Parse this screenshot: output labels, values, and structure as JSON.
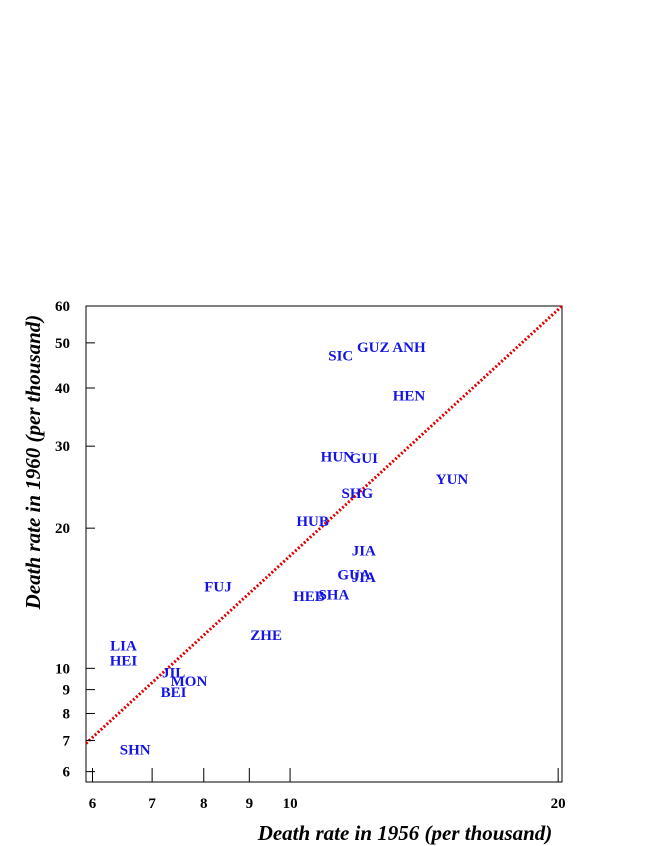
{
  "chart_data": {
    "type": "scatter",
    "xlabel": "Death rate in 1956 (per thousand)",
    "ylabel": "Death rate in 1960 (per thousand)",
    "x_scale": "log",
    "y_scale": "log",
    "xlim": [
      5.9,
      20.2
    ],
    "ylim": [
      5.7,
      60
    ],
    "x_ticks": [
      6,
      7,
      8,
      9,
      10,
      20
    ],
    "y_ticks": [
      6,
      7,
      8,
      9,
      10,
      20,
      30,
      40,
      50,
      60
    ],
    "grid": false,
    "reference_line": {
      "style": "dotted",
      "color": "#e00000",
      "x": [
        5.9,
        20.2
      ],
      "y": [
        6.9,
        60
      ]
    },
    "point_color": "#1414e6",
    "points": [
      {
        "label": "SIC",
        "x": 11.4,
        "y": 47.0
      },
      {
        "label": "GUZ",
        "x": 12.4,
        "y": 49.0
      },
      {
        "label": "ANH",
        "x": 13.6,
        "y": 49.0
      },
      {
        "label": "HEN",
        "x": 13.6,
        "y": 38.5
      },
      {
        "label": "HUN",
        "x": 11.3,
        "y": 28.5
      },
      {
        "label": "GUI",
        "x": 12.1,
        "y": 28.3
      },
      {
        "label": "YUN",
        "x": 15.2,
        "y": 25.5
      },
      {
        "label": "SHG",
        "x": 11.9,
        "y": 23.8
      },
      {
        "label": "HUB",
        "x": 10.6,
        "y": 20.7
      },
      {
        "label": "JIA",
        "x": 12.1,
        "y": 17.9
      },
      {
        "label": "GUA",
        "x": 11.8,
        "y": 15.9
      },
      {
        "label": "JIA",
        "x": 12.1,
        "y": 15.7
      },
      {
        "label": "HEB",
        "x": 10.5,
        "y": 14.3
      },
      {
        "label": "SHA",
        "x": 11.2,
        "y": 14.4
      },
      {
        "label": "FUJ",
        "x": 8.3,
        "y": 15.0
      },
      {
        "label": "ZHE",
        "x": 9.4,
        "y": 11.8
      },
      {
        "label": "LIA",
        "x": 6.5,
        "y": 11.2
      },
      {
        "label": "HEI",
        "x": 6.5,
        "y": 10.4
      },
      {
        "label": "JIL",
        "x": 7.4,
        "y": 9.8
      },
      {
        "label": "MON",
        "x": 7.7,
        "y": 9.4
      },
      {
        "label": "BEI",
        "x": 7.4,
        "y": 8.9
      },
      {
        "label": "SHN",
        "x": 6.7,
        "y": 6.7
      }
    ]
  }
}
